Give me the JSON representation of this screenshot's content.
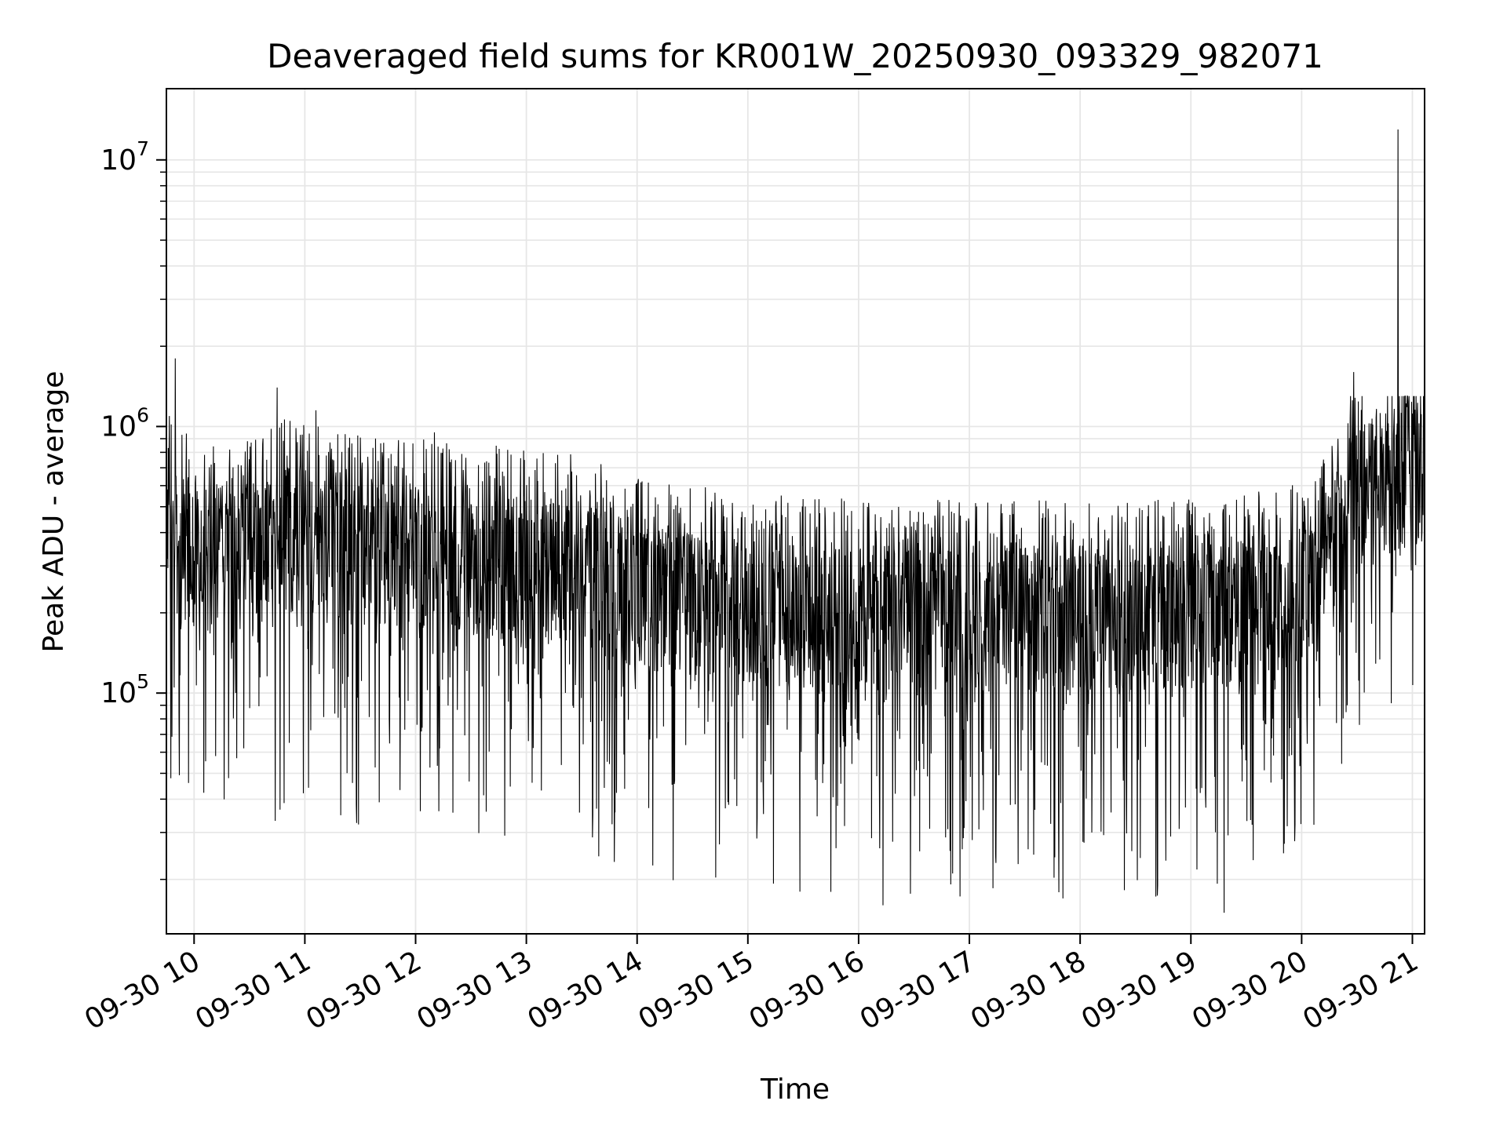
{
  "chart_data": {
    "type": "line",
    "title": "Deaveraged field sums for KR001W_20250930_093329_982071",
    "xlabel": "Time",
    "ylabel": "Peak ADU - average",
    "yscale": "log",
    "ylim": [
      12500,
      18500000
    ],
    "xlim_hours": [
      9.75,
      21.11
    ],
    "grid": true,
    "line_color": "#000000",
    "x_ticks": [
      {
        "hour": 10,
        "label": "09-30 10"
      },
      {
        "hour": 11,
        "label": "09-30 11"
      },
      {
        "hour": 12,
        "label": "09-30 12"
      },
      {
        "hour": 13,
        "label": "09-30 13"
      },
      {
        "hour": 14,
        "label": "09-30 14"
      },
      {
        "hour": 15,
        "label": "09-30 15"
      },
      {
        "hour": 16,
        "label": "09-30 16"
      },
      {
        "hour": 17,
        "label": "09-30 17"
      },
      {
        "hour": 18,
        "label": "09-30 18"
      },
      {
        "hour": 19,
        "label": "09-30 19"
      },
      {
        "hour": 20,
        "label": "09-30 20"
      },
      {
        "hour": 21,
        "label": "09-30 21"
      }
    ],
    "y_ticks": [
      {
        "value": 100000,
        "base": "10",
        "exp": "5"
      },
      {
        "value": 1000000,
        "base": "10",
        "exp": "6"
      },
      {
        "value": 10000000,
        "base": "10",
        "exp": "7"
      }
    ],
    "series": [
      {
        "name": "field sums",
        "trend": [
          {
            "hour": 9.75,
            "median": 400000
          },
          {
            "hour": 10.0,
            "median": 330000
          },
          {
            "hour": 10.5,
            "median": 320000
          },
          {
            "hour": 10.8,
            "median": 380000
          },
          {
            "hour": 11.5,
            "median": 330000
          },
          {
            "hour": 12.5,
            "median": 310000
          },
          {
            "hour": 13.0,
            "median": 290000
          },
          {
            "hour": 13.5,
            "median": 280000
          },
          {
            "hour": 14.0,
            "median": 230000
          },
          {
            "hour": 15.0,
            "median": 200000
          },
          {
            "hour": 16.0,
            "median": 190000
          },
          {
            "hour": 17.0,
            "median": 190000
          },
          {
            "hour": 18.0,
            "median": 190000
          },
          {
            "hour": 19.0,
            "median": 190000
          },
          {
            "hour": 19.8,
            "median": 210000
          },
          {
            "hour": 20.2,
            "median": 280000
          },
          {
            "hour": 20.45,
            "median": 520000
          },
          {
            "hour": 20.7,
            "median": 600000
          },
          {
            "hour": 21.11,
            "median": 700000
          }
        ],
        "spikes": [
          {
            "hour": 9.83,
            "value": 1800000
          },
          {
            "hour": 10.75,
            "value": 1400000
          },
          {
            "hour": 11.1,
            "value": 1150000
          },
          {
            "hour": 12.17,
            "value": 950000
          },
          {
            "hour": 20.47,
            "value": 1600000
          },
          {
            "hour": 20.87,
            "value": 13000000
          },
          {
            "hour": 9.95,
            "value": 46000
          },
          {
            "hour": 11.43,
            "value": 46000
          },
          {
            "hour": 15.47,
            "value": 18000
          },
          {
            "hour": 16.22,
            "value": 16000
          },
          {
            "hour": 18.7,
            "value": 19000
          },
          {
            "hour": 19.3,
            "value": 15000
          }
        ]
      }
    ]
  }
}
